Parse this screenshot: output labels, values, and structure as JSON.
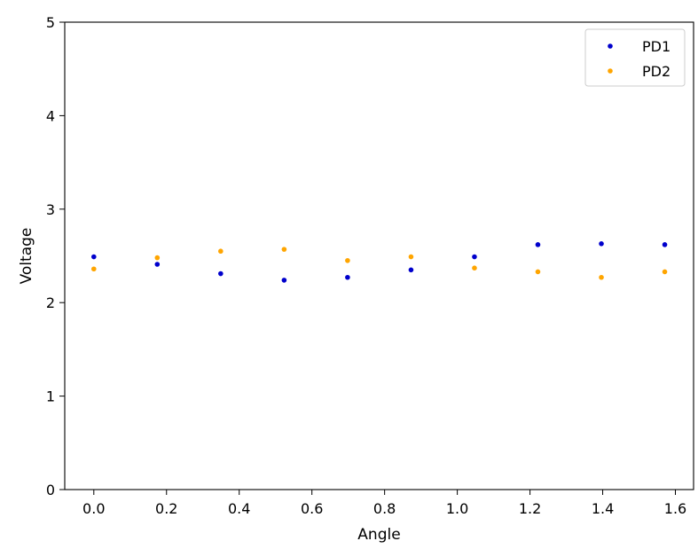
{
  "chart_data": {
    "type": "scatter",
    "title": "",
    "xlabel": "Angle",
    "ylabel": "Voltage",
    "xlim": [
      -0.08,
      1.65
    ],
    "ylim": [
      0,
      5
    ],
    "xticks": [
      0.0,
      0.2,
      0.4,
      0.6,
      0.8,
      1.0,
      1.2,
      1.4,
      1.6
    ],
    "xtick_labels": [
      "0.0",
      "0.2",
      "0.4",
      "0.6",
      "0.8",
      "1.0",
      "1.2",
      "1.4",
      "1.6"
    ],
    "yticks": [
      0,
      1,
      2,
      3,
      4,
      5
    ],
    "ytick_labels": [
      "0",
      "1",
      "2",
      "3",
      "4",
      "5"
    ],
    "grid": false,
    "legend_position": "top-right",
    "x": [
      0.0,
      0.1745,
      0.349,
      0.5236,
      0.6981,
      0.8727,
      1.0472,
      1.2217,
      1.3963,
      1.5708
    ],
    "series": [
      {
        "name": "PD1",
        "color": "#0000cc",
        "values": [
          2.49,
          2.41,
          2.31,
          2.24,
          2.27,
          2.35,
          2.49,
          2.62,
          2.63,
          2.62
        ]
      },
      {
        "name": "PD2",
        "color": "#ffa500",
        "values": [
          2.36,
          2.48,
          2.55,
          2.57,
          2.45,
          2.49,
          2.37,
          2.33,
          2.27,
          2.33
        ]
      }
    ]
  }
}
